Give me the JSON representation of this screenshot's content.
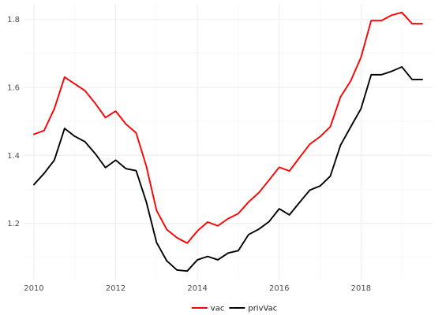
{
  "chart_data": {
    "type": "line",
    "title": "",
    "xlabel": "",
    "ylabel": "",
    "x_ticks": [
      2010,
      2012,
      2014,
      2016,
      2018
    ],
    "y_ticks": [
      1.2,
      1.4,
      1.6,
      1.8
    ],
    "xlim": [
      2009.75,
      2019.75
    ],
    "ylim": [
      1.035,
      1.845
    ],
    "grid": true,
    "legend_position": "bottom",
    "series": [
      {
        "name": "vac",
        "color": "#ff0000",
        "x": [
          2010.0,
          2010.25,
          2010.5,
          2010.75,
          2011.0,
          2011.25,
          2011.5,
          2011.75,
          2012.0,
          2012.25,
          2012.5,
          2012.75,
          2013.0,
          2013.25,
          2013.5,
          2013.75,
          2014.0,
          2014.25,
          2014.5,
          2014.75,
          2015.0,
          2015.25,
          2015.5,
          2015.75,
          2016.0,
          2016.25,
          2016.5,
          2016.75,
          2017.0,
          2017.25,
          2017.5,
          2017.75,
          2018.0,
          2018.25,
          2018.5,
          2018.75,
          2019.0,
          2019.25,
          2019.5
        ],
        "values": [
          1.462,
          1.473,
          1.537,
          1.63,
          1.61,
          1.59,
          1.553,
          1.511,
          1.53,
          1.492,
          1.466,
          1.368,
          1.238,
          1.182,
          1.158,
          1.142,
          1.178,
          1.204,
          1.193,
          1.214,
          1.229,
          1.263,
          1.29,
          1.327,
          1.365,
          1.354,
          1.394,
          1.433,
          1.455,
          1.484,
          1.572,
          1.619,
          1.688,
          1.796,
          1.796,
          1.812,
          1.82,
          1.787,
          1.787
        ]
      },
      {
        "name": "privVac",
        "color": "#000000",
        "x": [
          2010.0,
          2010.25,
          2010.5,
          2010.75,
          2011.0,
          2011.25,
          2011.5,
          2011.75,
          2012.0,
          2012.25,
          2012.5,
          2012.75,
          2013.0,
          2013.25,
          2013.5,
          2013.75,
          2014.0,
          2014.25,
          2014.5,
          2014.75,
          2015.0,
          2015.25,
          2015.5,
          2015.75,
          2016.0,
          2016.25,
          2016.5,
          2016.75,
          2017.0,
          2017.25,
          2017.5,
          2017.75,
          2018.0,
          2018.25,
          2018.5,
          2018.75,
          2019.0,
          2019.25,
          2019.5
        ],
        "values": [
          1.314,
          1.347,
          1.386,
          1.479,
          1.456,
          1.44,
          1.405,
          1.364,
          1.386,
          1.361,
          1.355,
          1.263,
          1.144,
          1.09,
          1.063,
          1.06,
          1.093,
          1.103,
          1.093,
          1.113,
          1.12,
          1.167,
          1.183,
          1.205,
          1.243,
          1.225,
          1.262,
          1.298,
          1.31,
          1.339,
          1.43,
          1.484,
          1.537,
          1.637,
          1.637,
          1.647,
          1.66,
          1.623,
          1.623
        ]
      }
    ]
  }
}
